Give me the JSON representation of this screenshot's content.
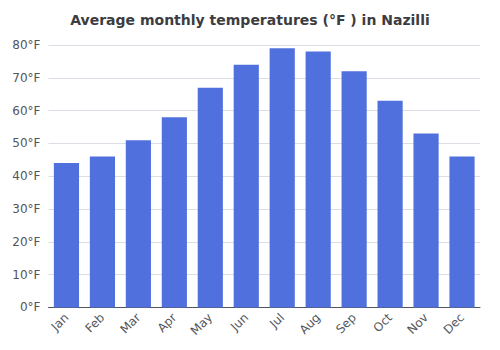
{
  "chart_data": {
    "type": "bar",
    "title": "Average monthly temperatures (°F ) in Nazilli",
    "categories": [
      "Jan",
      "Feb",
      "Mar",
      "Apr",
      "May",
      "Jun",
      "Jul",
      "Aug",
      "Sep",
      "Oct",
      "Nov",
      "Dec"
    ],
    "values": [
      44,
      46,
      51,
      58,
      67,
      74,
      79,
      78,
      72,
      63,
      53,
      46
    ],
    "ylim": [
      0,
      80
    ],
    "yticks": [
      {
        "value": 0,
        "label": "0°F"
      },
      {
        "value": 10,
        "label": "10°F"
      },
      {
        "value": 20,
        "label": "20°F"
      },
      {
        "value": 30,
        "label": "30°F"
      },
      {
        "value": 40,
        "label": "40°F"
      },
      {
        "value": 50,
        "label": "50°F"
      },
      {
        "value": 60,
        "label": "60°F"
      },
      {
        "value": 70,
        "label": "70°F"
      },
      {
        "value": 80,
        "label": "80°F"
      }
    ],
    "grid": true
  }
}
